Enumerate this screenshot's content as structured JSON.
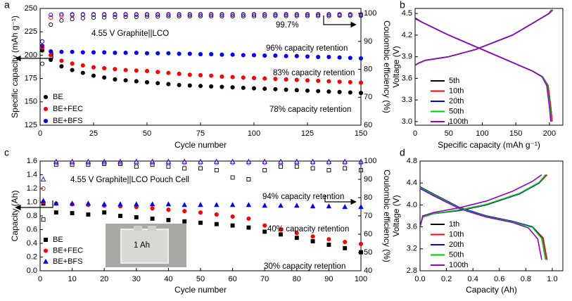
{
  "chart_data": [
    {
      "type": "scatter",
      "panel_label": "a",
      "x_label": "Cycle number",
      "y_label": "Specific capacity (mAh g⁻¹)",
      "y2_label": "Coulombic efficiency (%)",
      "xlim": [
        0,
        150
      ],
      "xticks": [
        0,
        25,
        50,
        75,
        100,
        125,
        150
      ],
      "ylim": [
        125,
        250
      ],
      "yticks": [
        125,
        150,
        175,
        200,
        225,
        250
      ],
      "y2lim": [
        60,
        101.8
      ],
      "y2ticks": [
        60,
        70,
        80,
        90,
        100
      ],
      "legend": "lower left",
      "x": [
        1,
        5,
        10,
        15,
        20,
        25,
        30,
        35,
        40,
        45,
        50,
        55,
        60,
        65,
        70,
        75,
        80,
        85,
        90,
        95,
        100,
        105,
        110,
        115,
        120,
        125,
        130,
        135,
        140,
        145,
        150
      ],
      "series": [
        {
          "name": "BE",
          "color": "#000000",
          "marker": "circle",
          "filled": true,
          "values": [
            205,
            195,
            188,
            184,
            181,
            178,
            176,
            174,
            173,
            172,
            171,
            170,
            169,
            168,
            167.5,
            167,
            166.5,
            166,
            165.5,
            165,
            164.5,
            164,
            163.5,
            163,
            162.5,
            162,
            161.5,
            161,
            160.5,
            160,
            159.5
          ]
        },
        {
          "name": "BE+FEC",
          "color": "#ff0000",
          "marker": "circle",
          "filled": true,
          "values": [
            208,
            200,
            194,
            191,
            189,
            187,
            186,
            185,
            184,
            183.5,
            183,
            182,
            181,
            180,
            179,
            178.5,
            178,
            177,
            176.5,
            176,
            175.5,
            175,
            174.5,
            174,
            173.5,
            173,
            172.5,
            172,
            171.5,
            171,
            170.5
          ]
        },
        {
          "name": "BE+BFS",
          "color": "#0000ff",
          "marker": "circle",
          "filled": true,
          "values": [
            210,
            204,
            203.5,
            203.5,
            203,
            203,
            203,
            202.5,
            202.5,
            202.5,
            202,
            202,
            202,
            201.5,
            201.5,
            201,
            201,
            200.5,
            200.5,
            200,
            200,
            199.5,
            199.5,
            199,
            199,
            198.5,
            198,
            198,
            197.5,
            197,
            196.5
          ]
        },
        {
          "color": "#000000",
          "marker": "circle",
          "filled": false,
          "axis": "y2",
          "values": [
            82,
            96,
            97.5,
            98,
            98.3,
            98.5,
            98.6,
            98.7,
            98.8,
            98.8,
            98.9,
            98.9,
            99,
            99,
            99,
            99,
            99,
            99,
            99,
            99,
            99,
            99,
            99.1,
            99.1,
            99.1,
            99.1,
            99.1,
            99.1,
            99.2,
            99.2,
            99.2
          ]
        },
        {
          "color": "#ff0000",
          "marker": "circle",
          "filled": false,
          "axis": "y2",
          "values": [
            88,
            98.5,
            99.2,
            99.4,
            99.5,
            99.5,
            99.5,
            99.5,
            99.5,
            99.5,
            99.5,
            99.5,
            99.5,
            99.5,
            99.5,
            99.5,
            99.5,
            99.5,
            99.5,
            99.5,
            99.5,
            99.5,
            99.5,
            99.5,
            99.5,
            99.5,
            99.5,
            99.5,
            99.5,
            99.5,
            99.5
          ]
        },
        {
          "color": "#0000ff",
          "marker": "circle",
          "filled": false,
          "axis": "y2",
          "values": [
            90,
            99.5,
            99.7,
            99.7,
            99.7,
            99.7,
            99.7,
            99.7,
            99.7,
            99.7,
            99.7,
            99.7,
            99.7,
            99.7,
            99.7,
            99.7,
            99.7,
            99.7,
            99.7,
            99.7,
            99.7,
            99.7,
            99.7,
            99.7,
            99.7,
            99.7,
            99.7,
            99.7,
            99.7,
            99.7,
            99.7
          ]
        }
      ],
      "annotations": [
        {
          "text": "4.55 V Graphite||LCO",
          "color": "#000000"
        },
        {
          "text": "99.7%",
          "color": "#0000ff"
        },
        {
          "text": "96% capacity retention",
          "color": "#0000ff"
        },
        {
          "text": "83% capacity retention",
          "color": "#ff0000"
        },
        {
          "text": "78% capacity retention",
          "color": "#000000"
        }
      ]
    },
    {
      "type": "line",
      "panel_label": "b",
      "x_label": "Specific capacity (mAh g⁻¹)",
      "y_label": "Voltage (V)",
      "xlim": [
        0,
        220
      ],
      "xticks": [
        0,
        50,
        100,
        150,
        200
      ],
      "ylim": [
        2.95,
        4.57
      ],
      "yticks": [
        {
          "value": 3.0,
          "label": "3.0"
        },
        3.3,
        3.6,
        3.9,
        4.2,
        4.5
      ],
      "legend": "lower left",
      "series": [
        {
          "name": "5th",
          "color": "#000000",
          "x": [
            0,
            5,
            15,
            50,
            90,
            145,
            200,
            205,
            null,
            0,
            10,
            50,
            100,
            150,
            175,
            190,
            198,
            202,
            204
          ],
          "values": [
            3.78,
            3.81,
            3.85,
            3.9,
            4.0,
            4.2,
            4.5,
            4.55,
            null,
            4.43,
            4.38,
            4.2,
            4.0,
            3.8,
            3.7,
            3.62,
            3.5,
            3.2,
            3.0
          ]
        },
        {
          "name": "10th",
          "color": "#ff0000",
          "x": [
            0,
            5,
            15,
            50,
            90,
            145,
            200,
            205,
            null,
            0,
            10,
            50,
            100,
            150,
            175,
            190,
            198,
            202,
            204
          ],
          "values": [
            3.78,
            3.81,
            3.85,
            3.9,
            4.0,
            4.2,
            4.5,
            4.55,
            null,
            4.43,
            4.38,
            4.2,
            4.0,
            3.8,
            3.7,
            3.62,
            3.5,
            3.2,
            3.0
          ]
        },
        {
          "name": "20th",
          "color": "#0000ff",
          "x": [
            0,
            5,
            15,
            50,
            90,
            145,
            200,
            204,
            null,
            0,
            10,
            50,
            100,
            150,
            175,
            190,
            197,
            201,
            203
          ],
          "values": [
            3.78,
            3.81,
            3.85,
            3.9,
            4.0,
            4.2,
            4.5,
            4.55,
            null,
            4.43,
            4.38,
            4.2,
            4.0,
            3.8,
            3.7,
            3.62,
            3.5,
            3.2,
            3.0
          ]
        },
        {
          "name": "50th",
          "color": "#00cc00",
          "x": [
            0,
            5,
            15,
            50,
            90,
            145,
            200,
            204,
            null,
            0,
            10,
            50,
            100,
            150,
            175,
            190,
            197,
            201,
            203
          ],
          "values": [
            3.78,
            3.81,
            3.85,
            3.9,
            4.0,
            4.2,
            4.5,
            4.55,
            null,
            4.44,
            4.38,
            4.2,
            4.0,
            3.8,
            3.7,
            3.62,
            3.5,
            3.2,
            3.0
          ]
        },
        {
          "name": "100th",
          "color": "#9900cc",
          "x": [
            0,
            5,
            15,
            50,
            90,
            145,
            199,
            203,
            null,
            0,
            10,
            50,
            100,
            150,
            175,
            189,
            196,
            200,
            202
          ],
          "values": [
            3.78,
            3.81,
            3.85,
            3.9,
            4.0,
            4.2,
            4.5,
            4.55,
            null,
            4.44,
            4.38,
            4.2,
            4.0,
            3.8,
            3.7,
            3.62,
            3.5,
            3.2,
            3.0
          ]
        }
      ]
    },
    {
      "type": "scatter",
      "panel_label": "c",
      "x_label": "Cycle number",
      "y_label": "Capacity (Ah)",
      "y2_label": "Coulombic efficiency (%)",
      "xlim": [
        0,
        100
      ],
      "xticks": [
        0,
        10,
        20,
        30,
        40,
        50,
        60,
        70,
        80,
        90,
        100
      ],
      "ylim": [
        0,
        1.6
      ],
      "yticks": [
        {
          "value": 0,
          "label": "0.0"
        },
        0.2,
        0.4,
        0.6,
        0.8,
        {
          "value": 1,
          "label": "1.0"
        },
        1.2,
        1.4,
        1.6
      ],
      "y2lim": [
        40,
        100
      ],
      "y2ticks": [
        40,
        50,
        60,
        70,
        80,
        90,
        100
      ],
      "legend": "lower left",
      "x": [
        1,
        5,
        10,
        15,
        20,
        25,
        30,
        35,
        40,
        45,
        50,
        55,
        60,
        65,
        70,
        75,
        80,
        85,
        90,
        95,
        100
      ],
      "series": [
        {
          "name": "BE",
          "color": "#000000",
          "marker": "square",
          "filled": true,
          "values": [
            0.98,
            0.85,
            0.84,
            0.82,
            0.85,
            0.8,
            0.78,
            0.76,
            0.74,
            0.72,
            0.7,
            0.68,
            0.66,
            0.63,
            0.57,
            0.53,
            0.48,
            0.43,
            0.38,
            0.33,
            0.27
          ]
        },
        {
          "name": "BE+FEC",
          "color": "#ff0000",
          "marker": "circle",
          "filled": true,
          "values": [
            1.0,
            0.98,
            0.97,
            0.96,
            0.95,
            0.94,
            0.93,
            0.91,
            0.89,
            0.87,
            0.85,
            0.82,
            0.79,
            0.76,
            0.66,
            0.6,
            0.55,
            0.5,
            0.46,
            0.42,
            0.39
          ]
        },
        {
          "name": "BE+BFS",
          "color": "#0000ff",
          "marker": "triangle",
          "filled": true,
          "values": [
            1.02,
            0.98,
            0.98,
            0.98,
            0.97,
            0.97,
            0.97,
            0.97,
            0.97,
            0.96,
            0.96,
            0.96,
            0.96,
            0.96,
            0.95,
            0.95,
            0.95,
            0.94,
            0.94,
            0.93,
            0.93
          ]
        },
        {
          "color": "#000000",
          "marker": "square",
          "filled": false,
          "axis": "y2",
          "values": [
            68,
            98,
            98,
            98,
            98.5,
            98.5,
            97,
            98,
            97,
            96,
            96,
            95,
            91,
            90,
            95,
            97,
            97,
            96,
            95,
            96,
            95
          ]
        },
        {
          "color": "#ff0000",
          "marker": "circle",
          "filled": false,
          "axis": "y2",
          "values": [
            85,
            99,
            99,
            99,
            99,
            99,
            99,
            99,
            99,
            99,
            99,
            99,
            99,
            99,
            99,
            99,
            99,
            99,
            99,
            99,
            99
          ]
        },
        {
          "color": "#0000ff",
          "marker": "triangle",
          "filled": false,
          "axis": "y2",
          "values": [
            90,
            99.7,
            99.7,
            99.7,
            99.7,
            99.7,
            99.7,
            99.7,
            99.7,
            99.7,
            99.7,
            99.7,
            99.7,
            99.7,
            99.7,
            99.7,
            99.7,
            99.7,
            99.7,
            99.7,
            99.7
          ]
        }
      ],
      "annotations": [
        {
          "text": "4.55 V Graphite||LCO Pouch Cell",
          "color": "#000000"
        },
        {
          "text": "94% capacity retention",
          "color": "#0000ff"
        },
        {
          "text": "40% capacity retention",
          "color": "#ff0000"
        },
        {
          "text": "30% capacity retention",
          "color": "#000000"
        },
        {
          "text": "1 Ah",
          "color": "#000000"
        }
      ]
    },
    {
      "type": "line",
      "panel_label": "d",
      "x_label": "Capacity (Ah)",
      "y_label": "Voltage (V)",
      "xlim": [
        0,
        1.08
      ],
      "xticks": [
        {
          "value": 0,
          "label": "0.0"
        },
        0.2,
        0.4,
        0.6,
        0.8,
        {
          "value": 1,
          "label": "1.0"
        }
      ],
      "ylim": [
        2.8,
        4.8
      ],
      "yticks": [
        2.8,
        3.2,
        3.6,
        {
          "value": 4,
          "label": "4.0"
        },
        4.4,
        4.8
      ],
      "legend": "lower left",
      "series": [
        {
          "name": "1th",
          "color": "#000000",
          "x": [
            0,
            0.02,
            0.1,
            0.3,
            0.5,
            0.75,
            0.9,
            0.96,
            null,
            0,
            0.1,
            0.3,
            0.5,
            0.7,
            0.85,
            0.93,
            0.96
          ],
          "values": [
            3.6,
            3.78,
            3.84,
            3.9,
            4.0,
            4.2,
            4.4,
            4.55,
            null,
            4.33,
            4.2,
            3.95,
            3.8,
            3.7,
            3.6,
            3.4,
            3.0
          ]
        },
        {
          "name": "10th",
          "color": "#ff0000",
          "x": [
            0,
            0.02,
            0.1,
            0.3,
            0.5,
            0.75,
            0.9,
            0.96,
            null,
            0,
            0.1,
            0.3,
            0.5,
            0.7,
            0.85,
            0.93,
            0.96
          ],
          "values": [
            3.6,
            3.78,
            3.84,
            3.9,
            4.0,
            4.2,
            4.4,
            4.55,
            null,
            4.33,
            4.2,
            3.95,
            3.8,
            3.7,
            3.6,
            3.4,
            3.0
          ]
        },
        {
          "name": "20th",
          "color": "#0000ff",
          "x": [
            0,
            0.02,
            0.1,
            0.3,
            0.5,
            0.75,
            0.9,
            0.95,
            null,
            0,
            0.1,
            0.3,
            0.5,
            0.7,
            0.85,
            0.92,
            0.95
          ],
          "values": [
            3.6,
            3.78,
            3.84,
            3.9,
            4.0,
            4.2,
            4.4,
            4.55,
            null,
            4.33,
            4.2,
            3.95,
            3.8,
            3.7,
            3.6,
            3.4,
            3.0
          ]
        },
        {
          "name": "50th",
          "color": "#00cc00",
          "x": [
            0,
            0.02,
            0.1,
            0.3,
            0.5,
            0.75,
            0.9,
            0.95,
            null,
            0,
            0.1,
            0.3,
            0.5,
            0.7,
            0.85,
            0.92,
            0.95
          ],
          "values": [
            3.6,
            3.78,
            3.84,
            3.91,
            4.01,
            4.21,
            4.41,
            4.55,
            null,
            4.32,
            4.19,
            3.94,
            3.79,
            3.69,
            3.59,
            3.39,
            3.0
          ]
        },
        {
          "name": "100th",
          "color": "#9900cc",
          "x": [
            0,
            0.02,
            0.1,
            0.3,
            0.5,
            0.7,
            0.85,
            0.92,
            null,
            0,
            0.1,
            0.3,
            0.5,
            0.7,
            0.82,
            0.89,
            0.92
          ],
          "values": [
            3.6,
            3.8,
            3.86,
            3.95,
            4.07,
            4.25,
            4.43,
            4.55,
            null,
            4.3,
            4.17,
            3.93,
            3.78,
            3.68,
            3.58,
            3.38,
            3.0
          ]
        }
      ]
    }
  ]
}
